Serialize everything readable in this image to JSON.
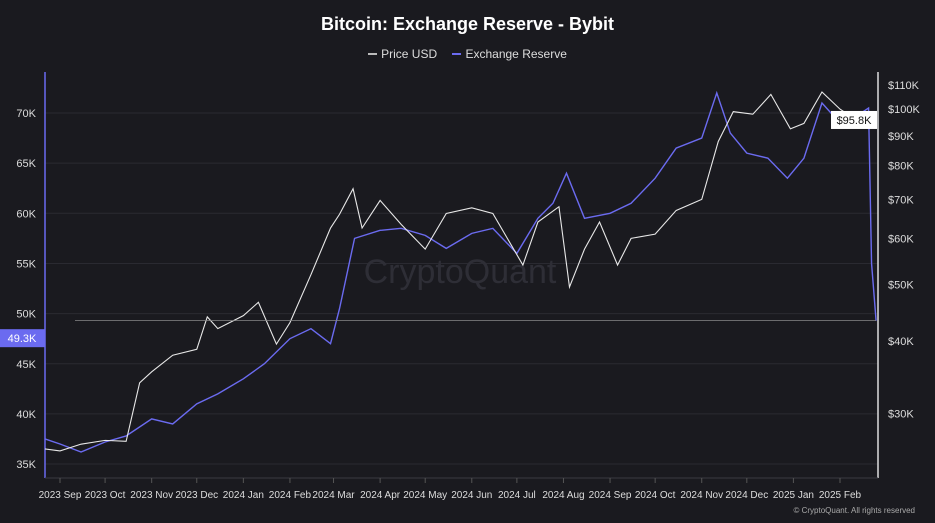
{
  "chart_data": {
    "type": "line",
    "title": "Bitcoin: Exchange Reserve - Bybit",
    "legend": [
      "Price USD",
      "Exchange Reserve"
    ],
    "legend_placement": "top-center",
    "colors": {
      "price": "#e8e8e8",
      "reserve": "#6b6bf0",
      "background": "#1a1a1f"
    },
    "left_axis": {
      "ticks": [
        "35K",
        "40K",
        "45K",
        "50K",
        "55K",
        "60K",
        "65K",
        "70K"
      ],
      "values": [
        35,
        40,
        45,
        50,
        55,
        60,
        65,
        70
      ],
      "range": [
        34,
        75
      ],
      "unit": "K BTC"
    },
    "right_axis": {
      "ticks": [
        "$30K",
        "$40K",
        "$50K",
        "$60K",
        "$70K",
        "$80K",
        "$90K",
        "$100K",
        "$110K"
      ],
      "values": [
        30,
        40,
        50,
        60,
        70,
        80,
        90,
        100,
        110
      ],
      "scale": "log",
      "unit": "K USD"
    },
    "x_ticks": [
      "2023 Sep",
      "2023 Oct",
      "2023 Nov",
      "2023 Dec",
      "2024 Jan",
      "2024 Feb",
      "2024 Mar",
      "2024 Apr",
      "2024 May",
      "2024 Jun",
      "2024 Jul",
      "2024 Aug",
      "2024 Sep",
      "2024 Oct",
      "2024 Nov",
      "2024 Dec",
      "2025 Jan",
      "2025 Feb"
    ],
    "x_tick_dates": [
      "2023-09-01",
      "2023-10-01",
      "2023-11-01",
      "2023-12-01",
      "2024-01-01",
      "2024-02-01",
      "2024-03-01",
      "2024-04-01",
      "2024-05-01",
      "2024-06-01",
      "2024-07-01",
      "2024-08-01",
      "2024-09-01",
      "2024-10-01",
      "2024-11-01",
      "2024-12-01",
      "2025-01-01",
      "2025-02-01"
    ],
    "grid": true,
    "series": [
      {
        "name": "Price USD",
        "axis": "right",
        "points": [
          [
            "2023-08-22",
            26.1
          ],
          [
            "2023-09-01",
            25.9
          ],
          [
            "2023-09-15",
            26.6
          ],
          [
            "2023-10-01",
            27.0
          ],
          [
            "2023-10-15",
            26.9
          ],
          [
            "2023-10-24",
            33.9
          ],
          [
            "2023-11-01",
            35.4
          ],
          [
            "2023-11-15",
            37.8
          ],
          [
            "2023-12-01",
            38.7
          ],
          [
            "2023-12-08",
            44.0
          ],
          [
            "2023-12-15",
            42.0
          ],
          [
            "2024-01-01",
            44.2
          ],
          [
            "2024-01-11",
            46.6
          ],
          [
            "2024-01-23",
            39.5
          ],
          [
            "2024-02-01",
            43.0
          ],
          [
            "2024-02-15",
            52.0
          ],
          [
            "2024-02-28",
            62.5
          ],
          [
            "2024-03-05",
            66.0
          ],
          [
            "2024-03-14",
            73.0
          ],
          [
            "2024-03-20",
            62.5
          ],
          [
            "2024-04-01",
            69.7
          ],
          [
            "2024-04-15",
            63.4
          ],
          [
            "2024-05-01",
            57.5
          ],
          [
            "2024-05-15",
            66.2
          ],
          [
            "2024-06-01",
            67.7
          ],
          [
            "2024-06-15",
            66.2
          ],
          [
            "2024-07-05",
            54.0
          ],
          [
            "2024-07-15",
            64.0
          ],
          [
            "2024-07-29",
            68.0
          ],
          [
            "2024-08-05",
            49.5
          ],
          [
            "2024-08-15",
            57.5
          ],
          [
            "2024-08-25",
            64.0
          ],
          [
            "2024-09-06",
            54.0
          ],
          [
            "2024-09-15",
            60.0
          ],
          [
            "2024-10-01",
            61.0
          ],
          [
            "2024-10-15",
            67.0
          ],
          [
            "2024-11-01",
            70.0
          ],
          [
            "2024-11-12",
            88.0
          ],
          [
            "2024-11-22",
            99.0
          ],
          [
            "2024-12-05",
            98.0
          ],
          [
            "2024-12-17",
            106.0
          ],
          [
            "2024-12-30",
            92.5
          ],
          [
            "2025-01-08",
            94.5
          ],
          [
            "2025-01-20",
            107.0
          ],
          [
            "2025-02-01",
            100.0
          ],
          [
            "2025-02-10",
            96.5
          ],
          [
            "2025-02-20",
            98.0
          ],
          [
            "2025-02-25",
            95.8
          ]
        ]
      },
      {
        "name": "Exchange Reserve",
        "axis": "left",
        "points": [
          [
            "2023-08-22",
            37.5
          ],
          [
            "2023-09-01",
            37.0
          ],
          [
            "2023-09-15",
            36.2
          ],
          [
            "2023-10-01",
            37.2
          ],
          [
            "2023-10-15",
            37.8
          ],
          [
            "2023-11-01",
            39.5
          ],
          [
            "2023-11-15",
            39.0
          ],
          [
            "2023-12-01",
            41.0
          ],
          [
            "2023-12-15",
            42.0
          ],
          [
            "2024-01-01",
            43.5
          ],
          [
            "2024-01-15",
            45.0
          ],
          [
            "2024-02-01",
            47.5
          ],
          [
            "2024-02-15",
            48.5
          ],
          [
            "2024-02-28",
            47.0
          ],
          [
            "2024-03-05",
            50.5
          ],
          [
            "2024-03-15",
            57.5
          ],
          [
            "2024-04-01",
            58.3
          ],
          [
            "2024-04-15",
            58.5
          ],
          [
            "2024-05-01",
            57.8
          ],
          [
            "2024-05-15",
            56.5
          ],
          [
            "2024-06-01",
            58.0
          ],
          [
            "2024-06-15",
            58.5
          ],
          [
            "2024-07-01",
            56.0
          ],
          [
            "2024-07-15",
            59.5
          ],
          [
            "2024-07-25",
            61.0
          ],
          [
            "2024-08-03",
            64.0
          ],
          [
            "2024-08-15",
            59.5
          ],
          [
            "2024-09-01",
            60.0
          ],
          [
            "2024-09-15",
            61.0
          ],
          [
            "2024-10-01",
            63.5
          ],
          [
            "2024-10-15",
            66.5
          ],
          [
            "2024-11-01",
            67.5
          ],
          [
            "2024-11-11",
            72.0
          ],
          [
            "2024-11-20",
            68.0
          ],
          [
            "2024-12-01",
            66.0
          ],
          [
            "2024-12-15",
            65.5
          ],
          [
            "2024-12-28",
            63.5
          ],
          [
            "2025-01-08",
            65.5
          ],
          [
            "2025-01-20",
            71.0
          ],
          [
            "2025-02-01",
            69.0
          ],
          [
            "2025-02-10",
            69.5
          ],
          [
            "2025-02-20",
            70.5
          ],
          [
            "2025-02-22",
            55.0
          ],
          [
            "2025-02-25",
            49.3
          ]
        ]
      }
    ],
    "current_labels": {
      "reserve": "49.3K",
      "price": "$95.8K"
    },
    "watermark": "CryptoQuant"
  },
  "footer": "© CryptoQuant. All rights reserved"
}
